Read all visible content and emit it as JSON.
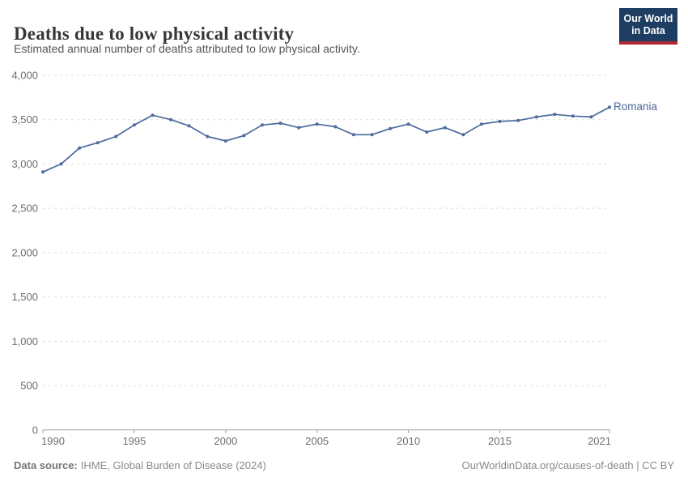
{
  "header": {
    "title": "Deaths due to low physical activity",
    "subtitle": "Estimated annual number of deaths attributed to low physical activity."
  },
  "logo": {
    "line1": "Our World",
    "line2": "in Data",
    "bg_color": "#1d3d63",
    "accent_color": "#b02a33"
  },
  "chart_data": {
    "type": "line",
    "title": "Deaths due to low physical activity",
    "subtitle": "Estimated annual number of deaths attributed to low physical activity.",
    "xlabel": "",
    "ylabel": "",
    "xlim": [
      1990,
      2021
    ],
    "ylim": [
      0,
      4000
    ],
    "grid": "horizontal-dashed",
    "legend_position": "line-end-label",
    "xticks": [
      1990,
      1995,
      2000,
      2005,
      2010,
      2015,
      2021
    ],
    "yticks": [
      {
        "value": 0,
        "label": "0"
      },
      {
        "value": 500,
        "label": "500"
      },
      {
        "value": 1000,
        "label": "1,000"
      },
      {
        "value": 1500,
        "label": "1,500"
      },
      {
        "value": 2000,
        "label": "2,000"
      },
      {
        "value": 2500,
        "label": "2,500"
      },
      {
        "value": 3000,
        "label": "3,000"
      },
      {
        "value": 3500,
        "label": "3,500"
      },
      {
        "value": 4000,
        "label": "4,000"
      }
    ],
    "series": [
      {
        "name": "Romania",
        "color": "#4C6A9C",
        "x": [
          1990,
          1991,
          1992,
          1993,
          1994,
          1995,
          1996,
          1997,
          1998,
          1999,
          2000,
          2001,
          2002,
          2003,
          2004,
          2005,
          2006,
          2007,
          2008,
          2009,
          2010,
          2011,
          2012,
          2013,
          2014,
          2015,
          2016,
          2017,
          2018,
          2019,
          2020,
          2021
        ],
        "values": [
          2910,
          3000,
          3180,
          3240,
          3310,
          3440,
          3550,
          3500,
          3430,
          3310,
          3260,
          3320,
          3440,
          3460,
          3410,
          3450,
          3420,
          3330,
          3330,
          3400,
          3450,
          3360,
          3410,
          3330,
          3450,
          3480,
          3490,
          3530,
          3560,
          3540,
          3530,
          3640
        ]
      }
    ]
  },
  "footer": {
    "data_source_label": "Data source:",
    "data_source_text": "IHME, Global Burden of Disease (2024)",
    "attribution": "OurWorldinData.org/causes-of-death | CC BY"
  }
}
